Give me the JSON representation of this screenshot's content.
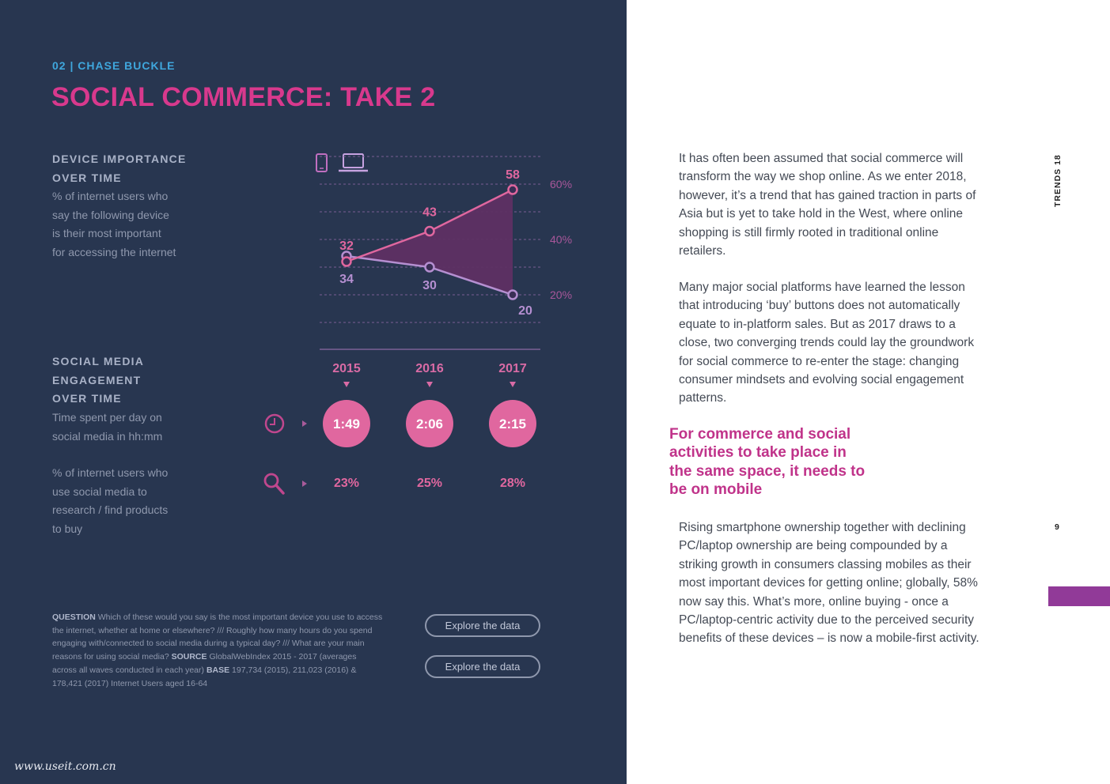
{
  "header": {
    "eyebrow_number": "02",
    "eyebrow_author": "CHASE BUCKLE",
    "title": "SOCIAL COMMERCE: TAKE 2"
  },
  "device_section": {
    "heading": [
      "DEVICE IMPORTANCE",
      "OVER TIME"
    ],
    "description": [
      "% of internet users who",
      "say the following device",
      "is their most important",
      "for accessing the internet"
    ],
    "icons": [
      "smartphone-icon",
      "laptop-icon"
    ]
  },
  "engagement_section": {
    "heading": [
      "SOCIAL MEDIA",
      "ENGAGEMENT",
      "OVER TIME"
    ],
    "time_desc": [
      "Time spent per day on",
      "social media in hh:mm"
    ],
    "research_desc": [
      "% of internet users who",
      "use social media to",
      "research / find products",
      "to buy"
    ],
    "icons": [
      "clock-icon",
      "search-icon"
    ]
  },
  "chart_data": [
    {
      "type": "line",
      "x": [
        "2015",
        "2016",
        "2017"
      ],
      "series": [
        {
          "values": [
            32,
            43,
            58
          ],
          "color": "#e0679f"
        },
        {
          "values": [
            34,
            30,
            20
          ],
          "color": "#b58fd1"
        }
      ],
      "y_ticks": [
        {
          "value": 60,
          "label": "60%"
        },
        {
          "value": 40,
          "label": "40%"
        },
        {
          "value": 20,
          "label": "20%"
        }
      ],
      "ylim": [
        10,
        70
      ],
      "grid": true,
      "legend": "icons top-left",
      "fill_color": "#5e3063"
    },
    {
      "type": "table",
      "columns": [
        "2015",
        "2016",
        "2017"
      ],
      "rows": [
        {
          "metric": "time_spent_hhmm",
          "values": [
            "1:49",
            "2:06",
            "2:15"
          ]
        },
        {
          "metric": "research_pct",
          "values": [
            "23%",
            "25%",
            "28%"
          ]
        }
      ]
    }
  ],
  "footnote": {
    "question_label": "QUESTION",
    "question_text": "Which of these would you say is the most important device you use to access the internet, whether at home or elsewhere? /// Roughly how many hours do you spend engaging with/connected to social media during a typical day? /// What are your main reasons for using social media?",
    "source_label": "SOURCE",
    "source_text": "GlobalWebIndex 2015 - 2017 (averages across all waves conducted in each year)",
    "base_label": "BASE",
    "base_text": "197,734 (2015), 211,023 (2016) & 178,421 (2017) Internet Users aged 16-64"
  },
  "buttons": [
    "Explore the data",
    "Explore the data"
  ],
  "watermark": "www.useit.com.cn",
  "body": {
    "p1": "It has often been assumed that social commerce will transform the way we shop online. As we enter 2018, however, it’s a trend that has gained traction in parts of Asia but is yet to take hold in the West, where online shopping is still firmly rooted in traditional online retailers.",
    "p2": "Many major social platforms have learned the lesson that introducing ‘buy’ buttons does not automatically equate to in-platform sales. But as 2017 draws to a close, two converging trends could lay the groundwork for social commerce to re-enter the stage: changing consumer mindsets and evolving social engagement patterns.",
    "pullquote": "For commerce and social activities to take place in the same space, it needs to be on mobile",
    "p3": "Rising smartphone ownership together with declining PC/laptop ownership are being compounded by a striking growth in consumers classing mobiles as their most important devices for getting online; globally, 58% now say this. What’s more, online buying - once a PC/laptop-centric activity due to the perceived security benefits of these devices – is now a mobile-first activity."
  },
  "side": {
    "label": "TRENDS 18",
    "page_number": "9"
  },
  "colors": {
    "panel": "#283650",
    "accent_pink": "#d8398d",
    "accent_blue": "#3fa7dd",
    "mobile_line": "#e0679f",
    "pc_line": "#b58fd1",
    "tab_purple": "#913a98"
  }
}
